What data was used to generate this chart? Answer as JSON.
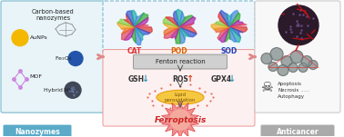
{
  "bg_color": "#ffffff",
  "left_box_color": "#e8f4f8",
  "left_box_border": "#7ab8cc",
  "mid_top_box_color": "#eef6fc",
  "mid_top_box_border": "#7ab8cc",
  "mid_bot_box_color": "#fdf0f0",
  "mid_bot_box_border": "#e88888",
  "right_box_color": "#f8f8f8",
  "right_box_border": "#cccccc",
  "label_nanozymes_bg": "#5aaac8",
  "label_anticancer_bg": "#aaaaaa",
  "cat_color": "#dd3333",
  "pod_color": "#dd6600",
  "sod_color": "#2244bb",
  "fenton_box_color": "#cccccc",
  "fenton_text": "Fenton reaction",
  "gsh_arrow_color": "#3399bb",
  "ros_arrow_color": "#dd4422",
  "gpx4_arrow_color": "#3399bb",
  "lipid_bg": "#f5c842",
  "lipid_border": "#e8a010",
  "ferroptosis_color": "#cc2222",
  "ferroptosis_spike_color": "#dd6655",
  "right_labels": [
    "Apoptosis",
    "Necrosis",
    "Autophagy"
  ],
  "nanozymes_label": "Nanozymes",
  "anticancer_label": "Anticancer",
  "arrow_color": "#e08888",
  "connector_color": "#555555"
}
